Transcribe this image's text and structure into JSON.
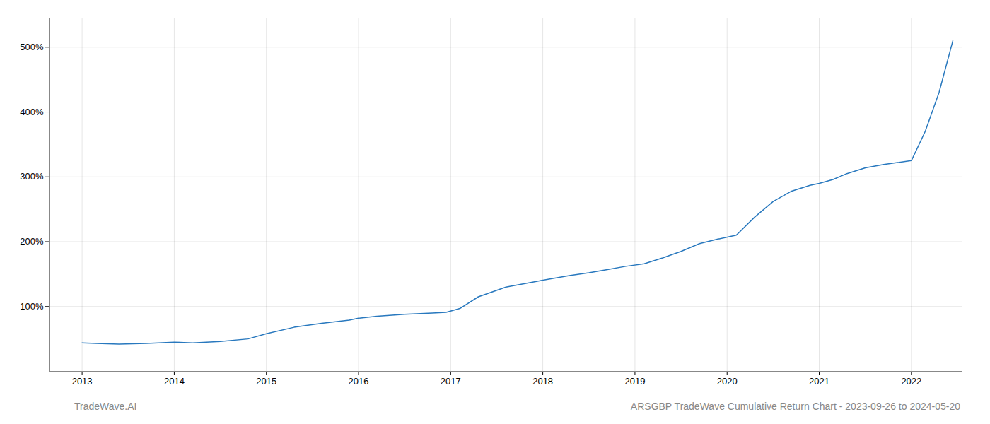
{
  "chart_data": {
    "type": "line",
    "x": [
      2013.0,
      2013.15,
      2013.4,
      2013.7,
      2014.0,
      2014.2,
      2014.5,
      2014.8,
      2015.0,
      2015.3,
      2015.6,
      2015.9,
      2016.0,
      2016.2,
      2016.5,
      2016.8,
      2016.95,
      2017.1,
      2017.3,
      2017.6,
      2017.9,
      2018.1,
      2018.3,
      2018.5,
      2018.7,
      2018.9,
      2019.1,
      2019.3,
      2019.5,
      2019.7,
      2019.9,
      2020.1,
      2020.3,
      2020.5,
      2020.7,
      2020.9,
      2021.0,
      2021.15,
      2021.3,
      2021.5,
      2021.7,
      2021.85,
      2022.0,
      2022.15,
      2022.3,
      2022.45
    ],
    "values": [
      44,
      43,
      42,
      43,
      45,
      44,
      46,
      50,
      58,
      68,
      74,
      79,
      82,
      85,
      88,
      90,
      91,
      97,
      115,
      130,
      138,
      143,
      148,
      152,
      157,
      162,
      166,
      175,
      185,
      197,
      204,
      210,
      238,
      262,
      278,
      287,
      290,
      296,
      305,
      314,
      319,
      322,
      325,
      370,
      430,
      510
    ],
    "color": "#2878be",
    "xlim": [
      2012.65,
      2022.55
    ],
    "xticks": [
      2013,
      2014,
      2015,
      2016,
      2017,
      2018,
      2019,
      2020,
      2021,
      2022
    ],
    "ylim": [
      0,
      545
    ],
    "yticks": [
      {
        "value": 100,
        "label": "100%"
      },
      {
        "value": 200,
        "label": "200%"
      },
      {
        "value": 300,
        "label": "300%"
      },
      {
        "value": 400,
        "label": "400%"
      },
      {
        "value": 500,
        "label": "500%"
      }
    ],
    "grid": true,
    "annotations": [
      "TradeWave.AI",
      "ARSGBP TradeWave Cumulative Return Chart - 2023-09-26 to 2024-05-20"
    ]
  }
}
